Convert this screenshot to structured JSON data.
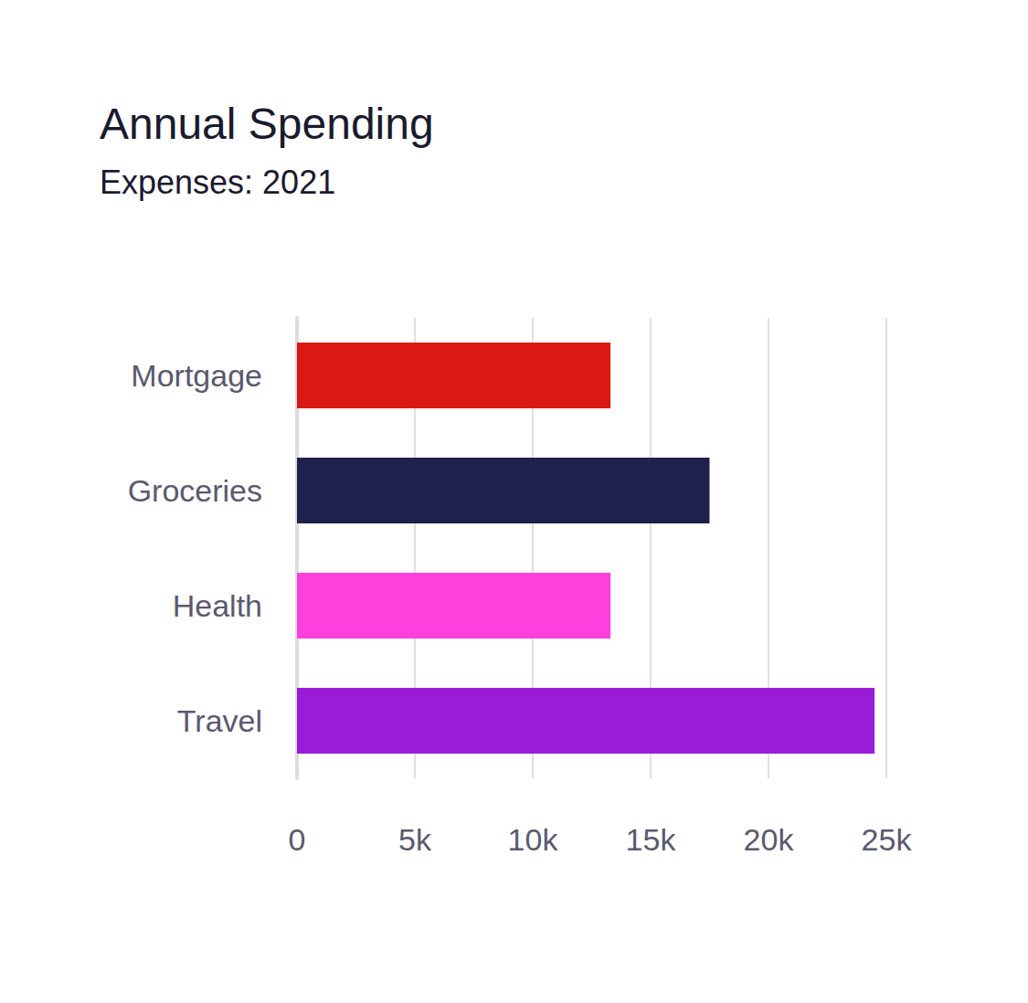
{
  "chart_data": {
    "type": "bar",
    "orientation": "horizontal",
    "title": "Annual Spending",
    "subtitle": "Expenses: 2021",
    "categories": [
      "Mortgage",
      "Groceries",
      "Health",
      "Travel"
    ],
    "values": [
      13300,
      17500,
      13300,
      24500
    ],
    "colors": [
      "#da1a12",
      "#20204d",
      "#ff40dd",
      "#991cd8"
    ],
    "xlim": [
      0,
      25000
    ],
    "xticks": [
      0,
      {
        "value": 5000,
        "label": "5k"
      },
      {
        "value": 10000,
        "label": "10k"
      },
      {
        "value": 15000,
        "label": "15k"
      },
      {
        "value": 20000,
        "label": "20k"
      },
      {
        "value": 25000,
        "label": "25k"
      }
    ],
    "grid": true
  }
}
